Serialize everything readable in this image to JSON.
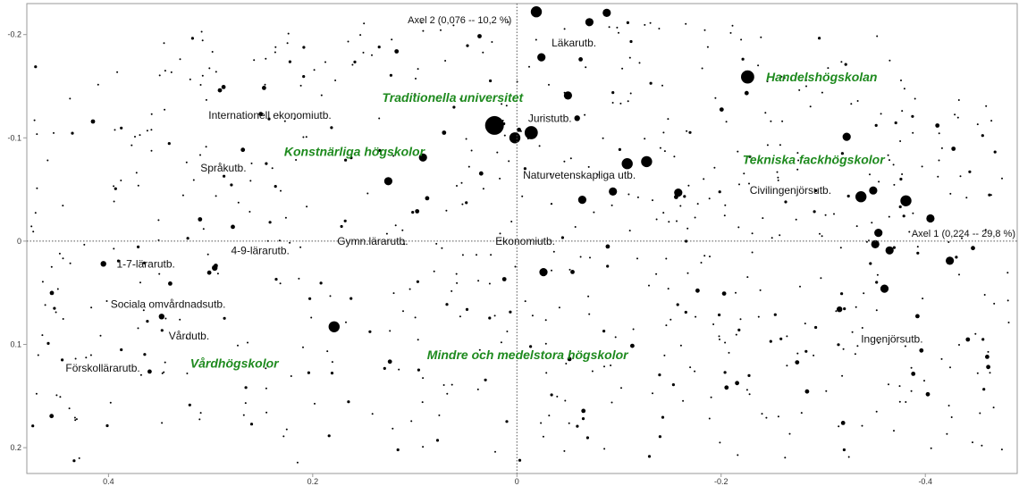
{
  "chart_data": {
    "type": "scatter",
    "title": "",
    "axis1_label": "Axel 1 (0,224 -- 29,8 %)",
    "axis2_label": "Axel 2 (0,076 -- 10,2 %)",
    "xlim": [
      0.48,
      -0.49
    ],
    "ylim": [
      -0.23,
      0.225
    ],
    "x_ticks": [
      {
        "value": 0.4,
        "label": "0.4"
      },
      {
        "value": 0.2,
        "label": "0.2"
      },
      {
        "value": 0,
        "label": "0"
      },
      {
        "value": -0.2,
        "label": "-0.2"
      },
      {
        "value": -0.4,
        "label": "-0.4"
      }
    ],
    "y_ticks": [
      {
        "value": -0.2,
        "label": "-0.2"
      },
      {
        "value": -0.1,
        "label": "-0.1"
      },
      {
        "value": 0,
        "label": "0"
      },
      {
        "value": 0.1,
        "label": "0.1"
      },
      {
        "value": 0.2,
        "label": "0.2"
      }
    ],
    "category_labels": [
      {
        "text": "Läkarutb.",
        "x": -0.034,
        "y": -0.192
      },
      {
        "text": "Juristutb.",
        "x": -0.011,
        "y": -0.119
      },
      {
        "text": "Internationell ekonomiutb.",
        "x": 0.302,
        "y": -0.122
      },
      {
        "text": "Språkutb.",
        "x": 0.31,
        "y": -0.071
      },
      {
        "text": "Naturvetenskapliga utb.",
        "x": -0.006,
        "y": -0.064
      },
      {
        "text": "Civilingenjörsutb.",
        "x": -0.228,
        "y": -0.049
      },
      {
        "text": "Gymn.lärarutb.",
        "x": 0.176,
        "y": 0.0
      },
      {
        "text": "Ekonomiutb.",
        "x": 0.021,
        "y": 0.0
      },
      {
        "text": "4-9-lärarutb.",
        "x": 0.28,
        "y": 0.009
      },
      {
        "text": "1-7-lärarutb.",
        "x": 0.392,
        "y": 0.022
      },
      {
        "text": "Sociala omvårdnadsutb.",
        "x": 0.398,
        "y": 0.061
      },
      {
        "text": "Vårdutb.",
        "x": 0.341,
        "y": 0.092
      },
      {
        "text": "Förskollärarutb.",
        "x": 0.442,
        "y": 0.123
      },
      {
        "text": "Ingenjörsutb.",
        "x": -0.337,
        "y": 0.095
      }
    ],
    "group_labels": [
      {
        "text": "Handelshögskolan",
        "x": -0.244,
        "y": -0.159
      },
      {
        "text": "Traditionella universitet",
        "x": 0.132,
        "y": -0.139
      },
      {
        "text": "Konstnärliga högskolor",
        "x": 0.228,
        "y": -0.087
      },
      {
        "text": "Tekniska fackhögskolor",
        "x": -0.221,
        "y": -0.079
      },
      {
        "text": "Mindre och medelstora högskolor",
        "x": 0.088,
        "y": 0.11
      },
      {
        "text": "Vårdhögskolor",
        "x": 0.32,
        "y": 0.118
      }
    ],
    "large_points": [
      {
        "x": -0.019,
        "y": -0.222,
        "size": 3
      },
      {
        "x": -0.071,
        "y": -0.212,
        "size": 2
      },
      {
        "x": -0.088,
        "y": -0.221,
        "size": 2
      },
      {
        "x": -0.024,
        "y": -0.178,
        "size": 2
      },
      {
        "x": -0.226,
        "y": -0.159,
        "size": 4
      },
      {
        "x": -0.05,
        "y": -0.141,
        "size": 2
      },
      {
        "x": -0.059,
        "y": -0.119,
        "size": 1
      },
      {
        "x": 0.022,
        "y": -0.112,
        "size": 5
      },
      {
        "x": -0.014,
        "y": -0.105,
        "size": 4
      },
      {
        "x": 0.002,
        "y": -0.1,
        "size": 3
      },
      {
        "x": -0.323,
        "y": -0.101,
        "size": 2
      },
      {
        "x": 0.092,
        "y": -0.081,
        "size": 2
      },
      {
        "x": -0.108,
        "y": -0.075,
        "size": 3
      },
      {
        "x": -0.127,
        "y": -0.077,
        "size": 3
      },
      {
        "x": -0.158,
        "y": -0.047,
        "size": 2
      },
      {
        "x": -0.094,
        "y": -0.048,
        "size": 2
      },
      {
        "x": -0.064,
        "y": -0.04,
        "size": 2
      },
      {
        "x": -0.337,
        "y": -0.043,
        "size": 3
      },
      {
        "x": -0.349,
        "y": -0.049,
        "size": 2
      },
      {
        "x": -0.381,
        "y": -0.039,
        "size": 3
      },
      {
        "x": -0.405,
        "y": -0.022,
        "size": 2
      },
      {
        "x": -0.354,
        "y": -0.008,
        "size": 2
      },
      {
        "x": -0.351,
        "y": 0.003,
        "size": 2
      },
      {
        "x": -0.365,
        "y": 0.009,
        "size": 2
      },
      {
        "x": -0.424,
        "y": 0.019,
        "size": 2
      },
      {
        "x": -0.36,
        "y": 0.046,
        "size": 2
      },
      {
        "x": -0.316,
        "y": 0.066,
        "size": 1
      },
      {
        "x": -0.026,
        "y": 0.03,
        "size": 2
      },
      {
        "x": 0.179,
        "y": 0.083,
        "size": 3
      },
      {
        "x": 0.126,
        "y": -0.058,
        "size": 2
      },
      {
        "x": 0.405,
        "y": 0.022,
        "size": 1
      },
      {
        "x": 0.296,
        "y": 0.026,
        "size": 1
      },
      {
        "x": 0.348,
        "y": 0.073,
        "size": 1
      }
    ],
    "small_point_count": 760,
    "grid": false
  }
}
